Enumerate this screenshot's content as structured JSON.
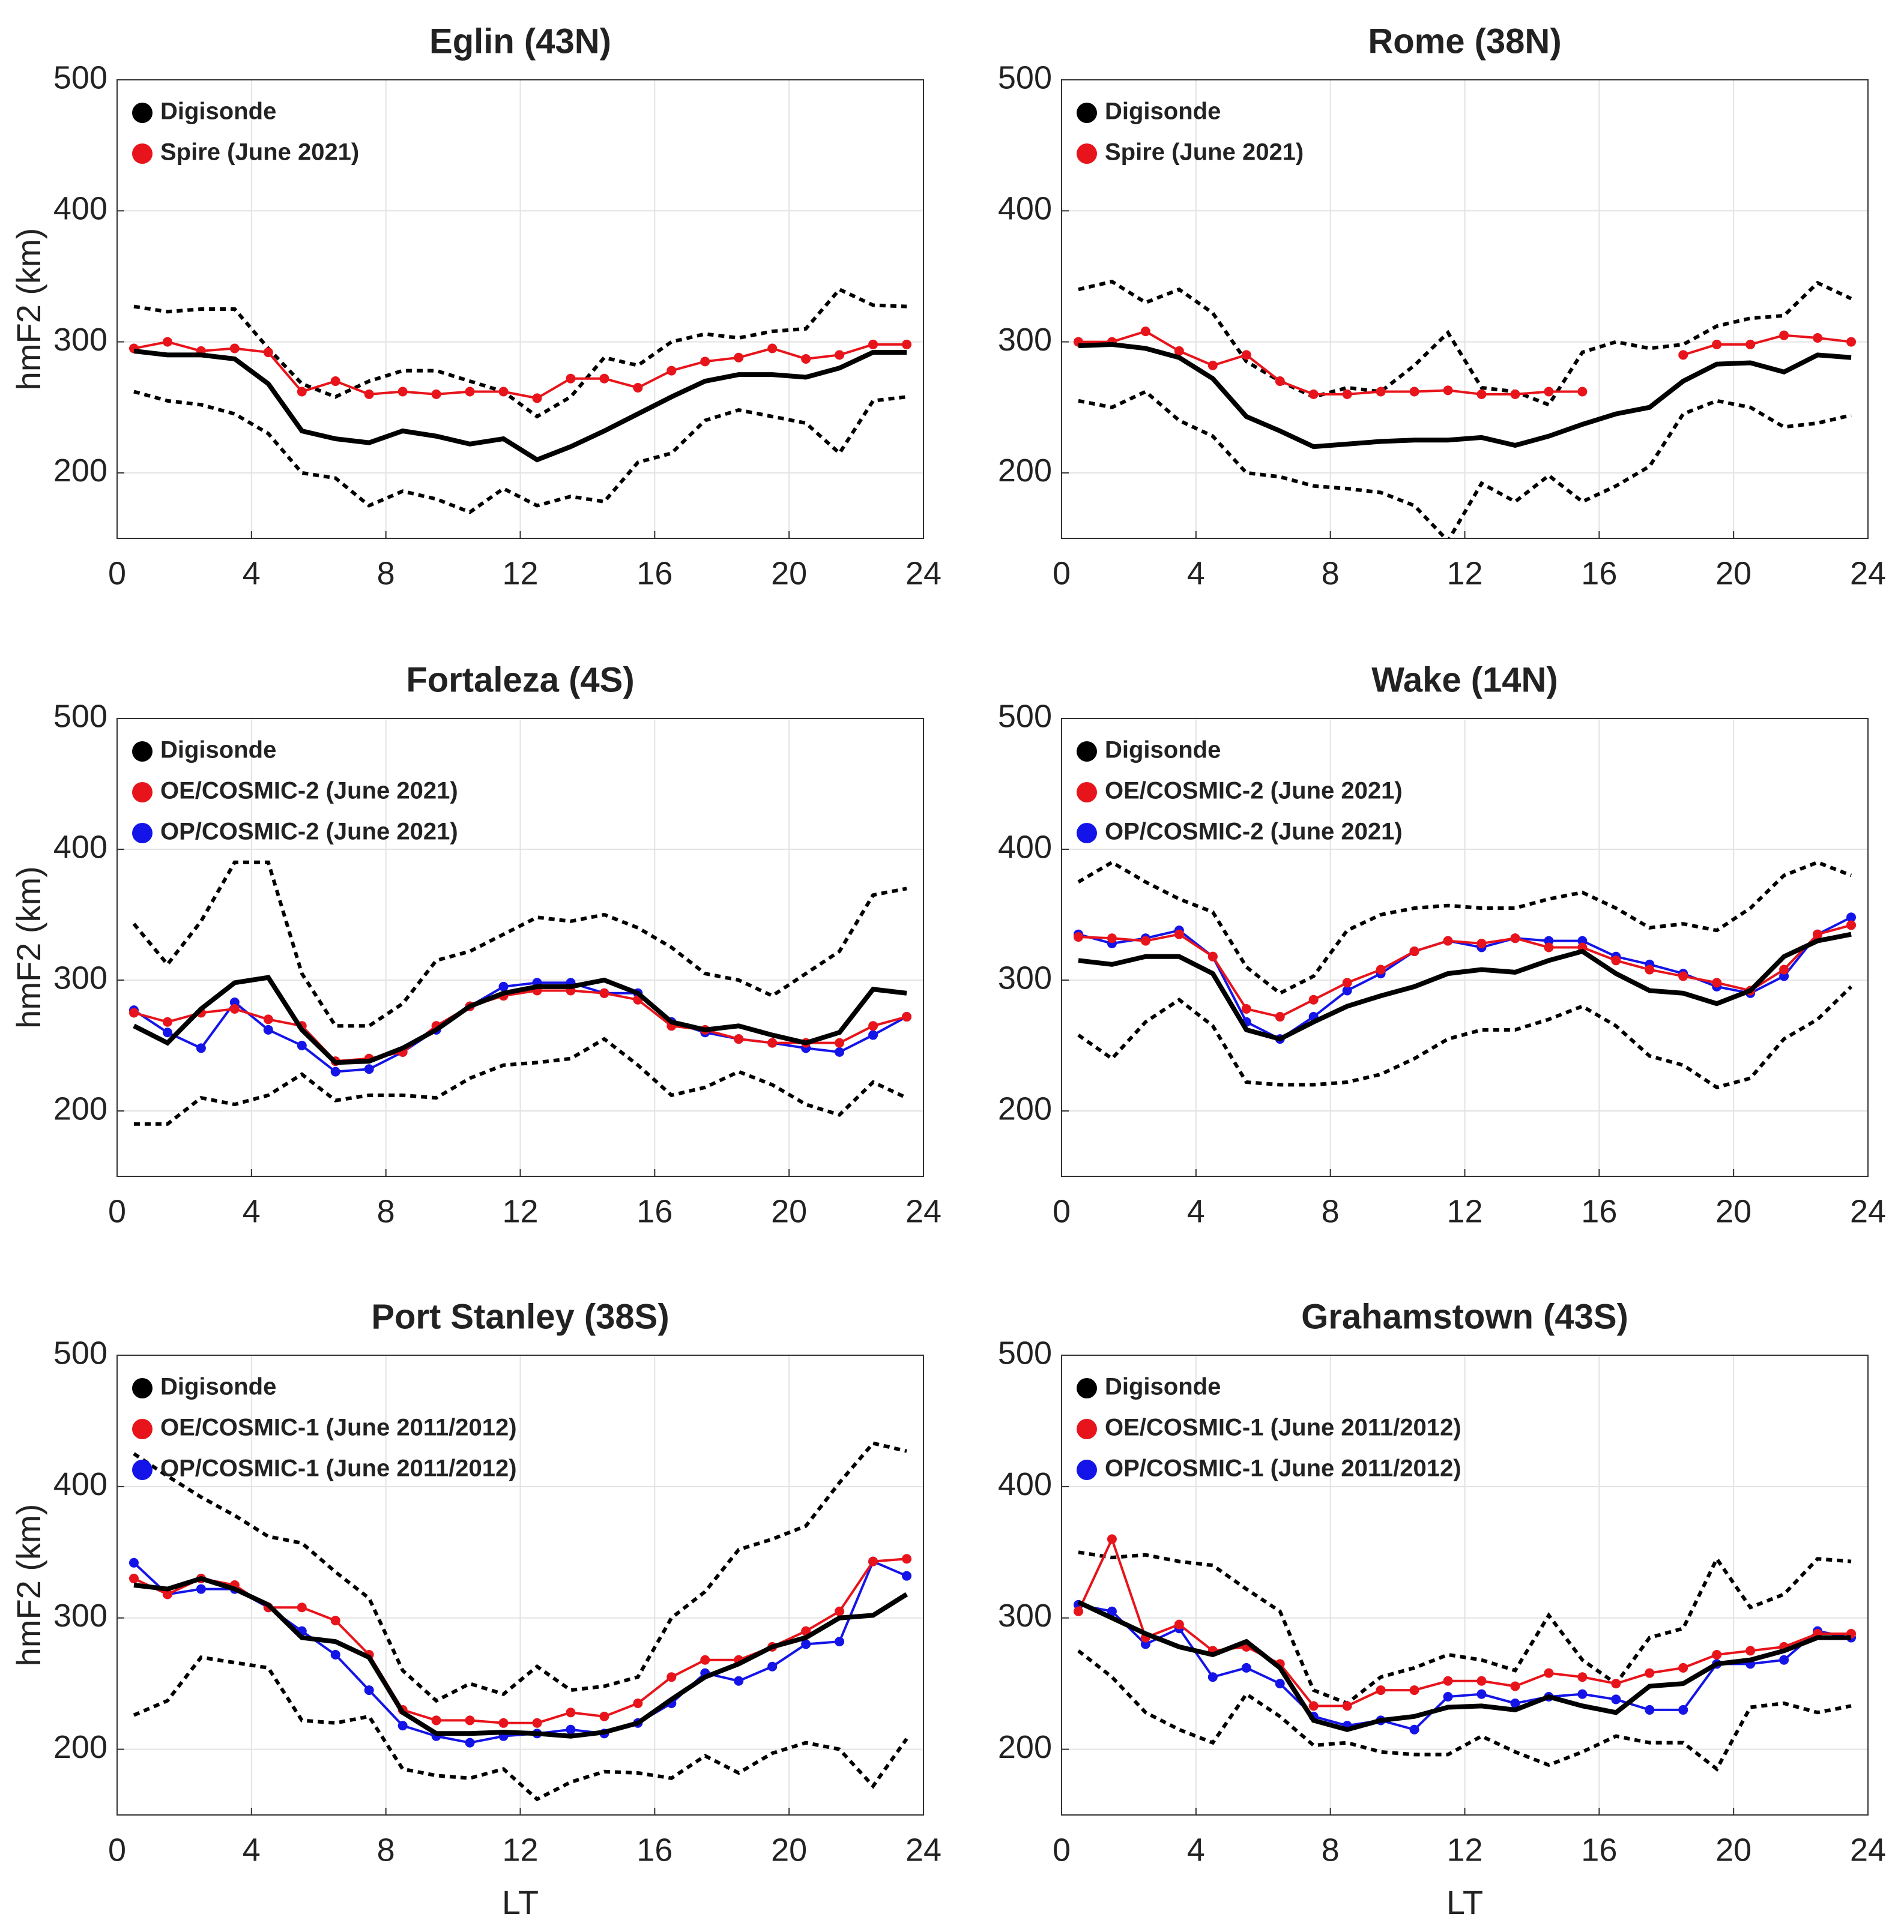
{
  "chart_data": [
    {
      "type": "line",
      "title": "Eglin (43N)",
      "ylabel": "hmF2 (km)",
      "legend": "upper left",
      "grid": true,
      "xlim": [
        0,
        24
      ],
      "xticks": [
        0,
        4,
        8,
        12,
        16,
        20,
        24
      ],
      "ylim": [
        150,
        500
      ],
      "yticks": [
        200,
        300,
        400,
        500
      ],
      "x": [
        0.5,
        1.5,
        2.5,
        3.5,
        4.5,
        5.5,
        6.5,
        7.5,
        8.5,
        9.5,
        10.5,
        11.5,
        12.5,
        13.5,
        14.5,
        15.5,
        16.5,
        17.5,
        18.5,
        19.5,
        20.5,
        21.5,
        22.5,
        23.5
      ],
      "series": [
        {
          "name": "Digisonde",
          "color": "#000000",
          "values": [
            293,
            290,
            290,
            287,
            268,
            232,
            226,
            223,
            232,
            228,
            222,
            226,
            210,
            220,
            232,
            245,
            258,
            270,
            275,
            275,
            273,
            280,
            292,
            292
          ]
        },
        {
          "name": "Spire (June 2021)",
          "color": "#e8141b",
          "marker": true,
          "values": [
            295,
            300,
            293,
            295,
            292,
            262,
            270,
            260,
            262,
            260,
            262,
            262,
            257,
            272,
            272,
            265,
            278,
            285,
            288,
            295,
            287,
            290,
            298,
            298
          ]
        },
        {
          "color": "#000000",
          "style": "dotted",
          "values": [
            327,
            323,
            325,
            325,
            295,
            268,
            258,
            270,
            278,
            278,
            270,
            262,
            243,
            258,
            288,
            282,
            300,
            306,
            303,
            308,
            310,
            340,
            328,
            327
          ]
        },
        {
          "color": "#000000",
          "style": "dotted",
          "values": [
            262,
            255,
            252,
            245,
            230,
            200,
            196,
            175,
            186,
            180,
            170,
            188,
            175,
            182,
            178,
            208,
            215,
            240,
            248,
            243,
            238,
            215,
            255,
            258
          ]
        }
      ]
    },
    {
      "type": "line",
      "title": "Rome (38N)",
      "legend": "upper left",
      "grid": true,
      "xlim": [
        0,
        24
      ],
      "xticks": [
        0,
        4,
        8,
        12,
        16,
        20,
        24
      ],
      "ylim": [
        150,
        500
      ],
      "yticks": [
        200,
        300,
        400,
        500
      ],
      "x": [
        0.5,
        1.5,
        2.5,
        3.5,
        4.5,
        5.5,
        6.5,
        7.5,
        8.5,
        9.5,
        10.5,
        11.5,
        12.5,
        13.5,
        14.5,
        15.5,
        16.5,
        17.5,
        18.5,
        19.5,
        20.5,
        21.5,
        22.5,
        23.5
      ],
      "series": [
        {
          "name": "Digisonde",
          "color": "#000000",
          "values": [
            297,
            298,
            295,
            288,
            272,
            243,
            232,
            220,
            222,
            224,
            225,
            225,
            227,
            221,
            228,
            237,
            245,
            250,
            270,
            283,
            284,
            277,
            290,
            288
          ]
        },
        {
          "name": "Spire (June 2021)",
          "color": "#e8141b",
          "marker": true,
          "values": [
            300,
            300,
            308,
            293,
            282,
            290,
            270,
            260,
            260,
            262,
            262,
            263,
            260,
            260,
            262,
            262,
            null,
            null,
            290,
            298,
            298,
            305,
            303,
            300
          ]
        },
        {
          "color": "#000000",
          "style": "dotted",
          "values": [
            340,
            346,
            330,
            340,
            322,
            285,
            270,
            258,
            265,
            262,
            282,
            307,
            265,
            262,
            252,
            292,
            300,
            295,
            298,
            312,
            318,
            320,
            345,
            333
          ]
        },
        {
          "color": "#000000",
          "style": "dotted",
          "values": [
            255,
            250,
            262,
            240,
            228,
            200,
            197,
            190,
            188,
            185,
            175,
            148,
            192,
            178,
            198,
            178,
            190,
            205,
            245,
            255,
            250,
            235,
            238,
            244
          ]
        }
      ]
    },
    {
      "type": "line",
      "title": "Fortaleza (4S)",
      "ylabel": "hmF2 (km)",
      "legend": "upper left",
      "grid": true,
      "xlim": [
        0,
        24
      ],
      "xticks": [
        0,
        4,
        8,
        12,
        16,
        20,
        24
      ],
      "ylim": [
        150,
        500
      ],
      "yticks": [
        200,
        300,
        400,
        500
      ],
      "x": [
        0.5,
        1.5,
        2.5,
        3.5,
        4.5,
        5.5,
        6.5,
        7.5,
        8.5,
        9.5,
        10.5,
        11.5,
        12.5,
        13.5,
        14.5,
        15.5,
        16.5,
        17.5,
        18.5,
        19.5,
        20.5,
        21.5,
        22.5,
        23.5
      ],
      "series": [
        {
          "name": "Digisonde",
          "color": "#000000",
          "values": [
            265,
            252,
            278,
            298,
            302,
            262,
            237,
            238,
            248,
            262,
            280,
            290,
            295,
            295,
            300,
            290,
            268,
            262,
            265,
            258,
            252,
            260,
            293,
            290
          ]
        },
        {
          "name": "OE/COSMIC-2 (June 2021)",
          "color": "#e8141b",
          "marker": true,
          "values": [
            275,
            268,
            275,
            278,
            270,
            265,
            238,
            240,
            245,
            265,
            280,
            288,
            292,
            292,
            290,
            285,
            265,
            262,
            255,
            252,
            252,
            252,
            265,
            272
          ]
        },
        {
          "name": "OP/COSMIC-2 (June 2021)",
          "color": "#1414e8",
          "marker": true,
          "values": [
            277,
            260,
            248,
            283,
            262,
            250,
            230,
            232,
            245,
            262,
            280,
            295,
            298,
            298,
            290,
            290,
            268,
            260,
            255,
            252,
            248,
            245,
            258,
            272
          ]
        },
        {
          "color": "#000000",
          "style": "dotted",
          "values": [
            343,
            312,
            345,
            390,
            390,
            305,
            265,
            265,
            282,
            315,
            322,
            335,
            348,
            345,
            350,
            340,
            325,
            305,
            300,
            288,
            305,
            322,
            365,
            370
          ]
        },
        {
          "color": "#000000",
          "style": "dotted",
          "values": [
            190,
            190,
            210,
            205,
            212,
            228,
            208,
            212,
            212,
            210,
            225,
            235,
            237,
            240,
            255,
            235,
            212,
            218,
            230,
            220,
            205,
            197,
            222,
            210
          ]
        }
      ]
    },
    {
      "type": "line",
      "title": "Wake (14N)",
      "legend": "upper left",
      "grid": true,
      "xlim": [
        0,
        24
      ],
      "xticks": [
        0,
        4,
        8,
        12,
        16,
        20,
        24
      ],
      "ylim": [
        150,
        500
      ],
      "yticks": [
        200,
        300,
        400,
        500
      ],
      "x": [
        0.5,
        1.5,
        2.5,
        3.5,
        4.5,
        5.5,
        6.5,
        7.5,
        8.5,
        9.5,
        10.5,
        11.5,
        12.5,
        13.5,
        14.5,
        15.5,
        16.5,
        17.5,
        18.5,
        19.5,
        20.5,
        21.5,
        22.5,
        23.5
      ],
      "series": [
        {
          "name": "Digisonde",
          "color": "#000000",
          "values": [
            315,
            312,
            318,
            318,
            305,
            262,
            255,
            268,
            280,
            288,
            295,
            305,
            308,
            306,
            315,
            322,
            305,
            292,
            290,
            282,
            292,
            318,
            330,
            335
          ]
        },
        {
          "name": "OE/COSMIC-2 (June 2021)",
          "color": "#e8141b",
          "marker": true,
          "values": [
            333,
            332,
            330,
            335,
            318,
            278,
            272,
            285,
            298,
            308,
            322,
            330,
            328,
            332,
            325,
            325,
            315,
            308,
            303,
            298,
            292,
            308,
            335,
            342
          ]
        },
        {
          "name": "OP/COSMIC-2 (June 2021)",
          "color": "#1414e8",
          "marker": true,
          "values": [
            335,
            328,
            332,
            338,
            318,
            268,
            255,
            272,
            292,
            305,
            322,
            330,
            325,
            332,
            330,
            330,
            318,
            312,
            305,
            295,
            290,
            303,
            335,
            348
          ]
        },
        {
          "color": "#000000",
          "style": "dotted",
          "values": [
            375,
            390,
            375,
            362,
            352,
            310,
            290,
            303,
            338,
            350,
            355,
            357,
            355,
            355,
            362,
            367,
            355,
            340,
            343,
            338,
            355,
            380,
            390,
            380
          ]
        },
        {
          "color": "#000000",
          "style": "dotted",
          "values": [
            258,
            240,
            268,
            285,
            265,
            222,
            220,
            220,
            222,
            228,
            240,
            255,
            262,
            262,
            270,
            280,
            265,
            242,
            235,
            218,
            225,
            255,
            270,
            295
          ]
        }
      ]
    },
    {
      "type": "line",
      "title": "Port Stanley (38S)",
      "ylabel": "hmF2 (km)",
      "xlabel": "LT",
      "legend": "upper left",
      "grid": true,
      "xlim": [
        0,
        24
      ],
      "xticks": [
        0,
        4,
        8,
        12,
        16,
        20,
        24
      ],
      "ylim": [
        150,
        500
      ],
      "yticks": [
        200,
        300,
        400,
        500
      ],
      "x": [
        0.5,
        1.5,
        2.5,
        3.5,
        4.5,
        5.5,
        6.5,
        7.5,
        8.5,
        9.5,
        10.5,
        11.5,
        12.5,
        13.5,
        14.5,
        15.5,
        16.5,
        17.5,
        18.5,
        19.5,
        20.5,
        21.5,
        22.5,
        23.5
      ],
      "series": [
        {
          "name": "Digisonde",
          "color": "#000000",
          "values": [
            325,
            322,
            330,
            322,
            310,
            285,
            282,
            270,
            228,
            212,
            212,
            213,
            212,
            210,
            213,
            220,
            238,
            255,
            265,
            278,
            285,
            300,
            302,
            318
          ]
        },
        {
          "name": "OE/COSMIC-1 (June 2011/2012)",
          "color": "#e8141b",
          "marker": true,
          "values": [
            330,
            318,
            330,
            325,
            308,
            308,
            298,
            272,
            230,
            222,
            222,
            220,
            220,
            228,
            225,
            235,
            255,
            268,
            268,
            278,
            290,
            305,
            343,
            345
          ]
        },
        {
          "name": "OP/COSMIC-1 (June 2011/2012)",
          "color": "#1414e8",
          "marker": true,
          "values": [
            342,
            318,
            322,
            322,
            308,
            290,
            272,
            245,
            218,
            210,
            205,
            210,
            212,
            215,
            212,
            220,
            235,
            258,
            252,
            263,
            280,
            282,
            343,
            332
          ]
        },
        {
          "color": "#000000",
          "style": "dotted",
          "values": [
            425,
            408,
            392,
            378,
            362,
            357,
            335,
            315,
            260,
            237,
            250,
            242,
            263,
            245,
            248,
            255,
            300,
            320,
            352,
            360,
            370,
            403,
            433,
            427
          ]
        },
        {
          "color": "#000000",
          "style": "dotted",
          "values": [
            226,
            237,
            270,
            266,
            262,
            222,
            220,
            225,
            185,
            180,
            178,
            185,
            162,
            175,
            183,
            182,
            178,
            195,
            182,
            197,
            205,
            200,
            172,
            208
          ]
        }
      ]
    },
    {
      "type": "line",
      "title": "Grahamstown (43S)",
      "xlabel": "LT",
      "legend": "upper left",
      "grid": true,
      "xlim": [
        0,
        24
      ],
      "xticks": [
        0,
        4,
        8,
        12,
        16,
        20,
        24
      ],
      "ylim": [
        150,
        500
      ],
      "yticks": [
        200,
        300,
        400,
        500
      ],
      "x": [
        0.5,
        1.5,
        2.5,
        3.5,
        4.5,
        5.5,
        6.5,
        7.5,
        8.5,
        9.5,
        10.5,
        11.5,
        12.5,
        13.5,
        14.5,
        15.5,
        16.5,
        17.5,
        18.5,
        19.5,
        20.5,
        21.5,
        22.5,
        23.5
      ],
      "series": [
        {
          "name": "Digisonde",
          "color": "#000000",
          "values": [
            312,
            300,
            288,
            278,
            272,
            282,
            262,
            222,
            215,
            222,
            225,
            232,
            233,
            230,
            240,
            233,
            228,
            248,
            250,
            265,
            268,
            275,
            285,
            285
          ]
        },
        {
          "name": "OE/COSMIC-1 (June 2011/2012)",
          "color": "#e8141b",
          "marker": true,
          "values": [
            305,
            360,
            285,
            295,
            275,
            278,
            265,
            233,
            233,
            245,
            245,
            252,
            252,
            248,
            258,
            255,
            250,
            258,
            262,
            272,
            275,
            278,
            288,
            288
          ]
        },
        {
          "name": "OP/COSMIC-1 (June 2011/2012)",
          "color": "#1414e8",
          "marker": true,
          "values": [
            310,
            305,
            280,
            292,
            255,
            262,
            250,
            225,
            218,
            222,
            215,
            240,
            242,
            235,
            240,
            242,
            238,
            230,
            230,
            265,
            265,
            268,
            290,
            285
          ]
        },
        {
          "color": "#000000",
          "style": "dotted",
          "values": [
            350,
            346,
            348,
            343,
            340,
            322,
            305,
            245,
            235,
            255,
            262,
            272,
            268,
            260,
            302,
            268,
            250,
            285,
            292,
            345,
            308,
            318,
            345,
            343
          ]
        },
        {
          "color": "#000000",
          "style": "dotted",
          "values": [
            275,
            255,
            228,
            215,
            205,
            242,
            225,
            203,
            205,
            198,
            196,
            196,
            210,
            198,
            188,
            198,
            210,
            205,
            205,
            185,
            232,
            235,
            228,
            233
          ]
        }
      ]
    }
  ]
}
